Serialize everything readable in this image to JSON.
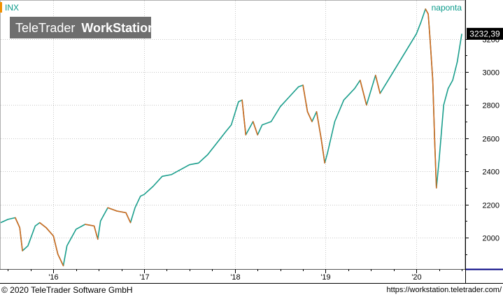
{
  "chart_data": {
    "type": "line",
    "symbol": "INX",
    "interval": "naponta",
    "last_value": "3232,39",
    "watermark": {
      "brand": "TeleTrader",
      "product": "WorkStation"
    },
    "y_ticks": [
      2000,
      2200,
      2400,
      2600,
      2800,
      3000,
      3200
    ],
    "ylim": [
      1810,
      3430
    ],
    "xlim": [
      2015.42,
      2020.53
    ],
    "x_ticks": [
      {
        "label": "'16",
        "x": 2016.0
      },
      {
        "label": "'17",
        "x": 2017.0
      },
      {
        "label": "'18",
        "x": 2018.0
      },
      {
        "label": "'19",
        "x": 2019.0
      },
      {
        "label": "'20",
        "x": 2020.0
      }
    ],
    "series": [
      {
        "x": [
          2015.42,
          2015.5,
          2015.58,
          2015.63,
          2015.66,
          2015.72,
          2015.8,
          2015.85,
          2015.92,
          2016.0,
          2016.05,
          2016.11,
          2016.15,
          2016.25,
          2016.35,
          2016.45,
          2016.49,
          2016.52,
          2016.6,
          2016.7,
          2016.8,
          2016.85,
          2016.9,
          2016.96,
          2017.0,
          2017.1,
          2017.2,
          2017.3,
          2017.4,
          2017.5,
          2017.6,
          2017.7,
          2017.8,
          2017.9,
          2017.96,
          2018.04,
          2018.08,
          2018.12,
          2018.2,
          2018.25,
          2018.3,
          2018.4,
          2018.5,
          2018.6,
          2018.7,
          2018.75,
          2018.8,
          2018.85,
          2018.9,
          2018.95,
          2018.99,
          2019.02,
          2019.1,
          2019.2,
          2019.32,
          2019.38,
          2019.45,
          2019.55,
          2019.6,
          2019.7,
          2019.8,
          2019.9,
          2020.0,
          2020.05,
          2020.1,
          2020.13,
          2020.15,
          2020.18,
          2020.2,
          2020.22,
          2020.25,
          2020.3,
          2020.35,
          2020.4,
          2020.45,
          2020.5
        ],
        "y": [
          2090,
          2110,
          2120,
          2060,
          1920,
          1950,
          2070,
          2090,
          2060,
          2010,
          1900,
          1830,
          1950,
          2050,
          2080,
          2070,
          1990,
          2100,
          2180,
          2160,
          2150,
          2090,
          2180,
          2250,
          2260,
          2310,
          2370,
          2380,
          2410,
          2440,
          2450,
          2500,
          2570,
          2640,
          2680,
          2820,
          2830,
          2620,
          2700,
          2620,
          2680,
          2700,
          2790,
          2850,
          2910,
          2920,
          2760,
          2700,
          2760,
          2600,
          2450,
          2510,
          2700,
          2830,
          2900,
          2950,
          2800,
          2980,
          2870,
          2960,
          3050,
          3140,
          3230,
          3300,
          3380,
          3350,
          3200,
          2950,
          2600,
          2300,
          2470,
          2800,
          2900,
          2950,
          3060,
          3230
        ]
      }
    ]
  },
  "footer": {
    "copyright": "© 2020 TeleTrader Software GmbH",
    "url": "https://workstation.teletrader.com/"
  }
}
